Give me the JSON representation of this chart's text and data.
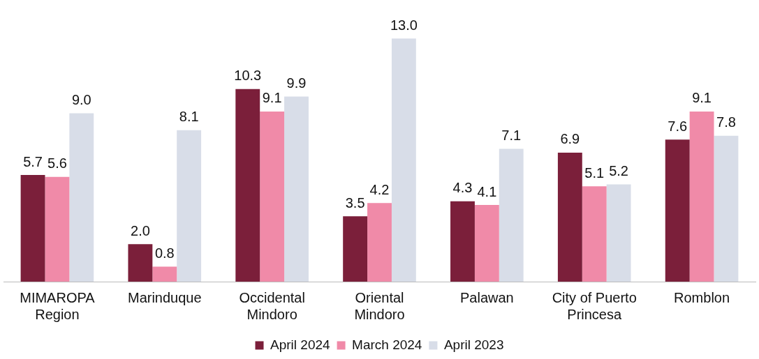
{
  "chart_data": {
    "type": "bar",
    "categories": [
      "MIMAROPA Region",
      "Marinduque",
      "Occidental Mindoro",
      "Oriental Mindoro",
      "Palawan",
      "City of Puerto Princesa",
      "Romblon"
    ],
    "series": [
      {
        "name": "April 2024",
        "color": "#7b1f3a",
        "values": [
          5.7,
          2.0,
          10.3,
          3.5,
          4.3,
          6.9,
          7.6
        ],
        "value_labels": [
          "5.7",
          "2.0",
          "10.3",
          "3.5",
          "4.3",
          "6.9",
          "7.6"
        ]
      },
      {
        "name": "March 2024",
        "color": "#f08aa8",
        "values": [
          5.6,
          0.8,
          9.1,
          4.2,
          4.1,
          5.1,
          9.1
        ],
        "value_labels": [
          "5.6",
          "0.8",
          "9.1",
          "4.2",
          "4.1",
          "5.1",
          "9.1"
        ]
      },
      {
        "name": "April 2023",
        "color": "#d8dde8",
        "values": [
          9.0,
          8.1,
          9.9,
          13.0,
          7.1,
          5.2,
          7.8
        ],
        "value_labels": [
          "9.0",
          "8.1",
          "9.9",
          "13.0",
          "7.1",
          "5.2",
          "7.8"
        ]
      }
    ],
    "legend": "bottom",
    "grid": false
  }
}
